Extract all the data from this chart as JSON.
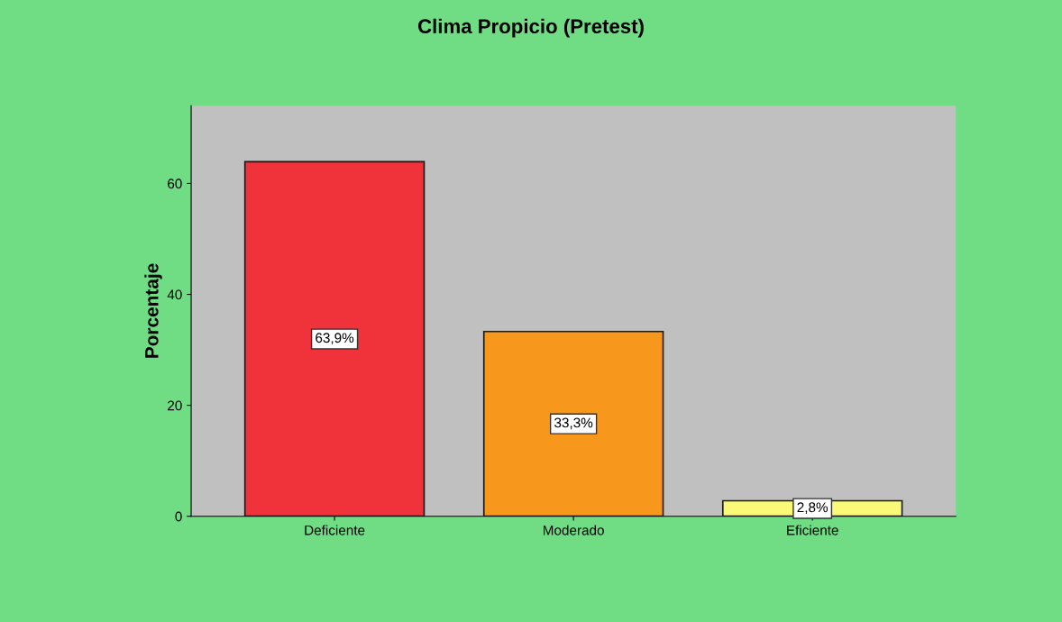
{
  "chart_data": {
    "type": "bar",
    "title": "Clima Propicio (Pretest)",
    "ylabel": "Porcentaje",
    "categories": [
      "Deficiente",
      "Moderado",
      "Eficiente"
    ],
    "values": [
      63.9,
      33.3,
      2.8
    ],
    "colors": [
      "#f0323a",
      "#f7981d",
      "#fafa78"
    ],
    "value_labels": [
      "63,9%",
      "33,3%",
      "2,8%"
    ],
    "ylim": [
      0,
      74
    ],
    "yticks": [
      0,
      20,
      40,
      60
    ],
    "grid": false,
    "legend": false
  }
}
